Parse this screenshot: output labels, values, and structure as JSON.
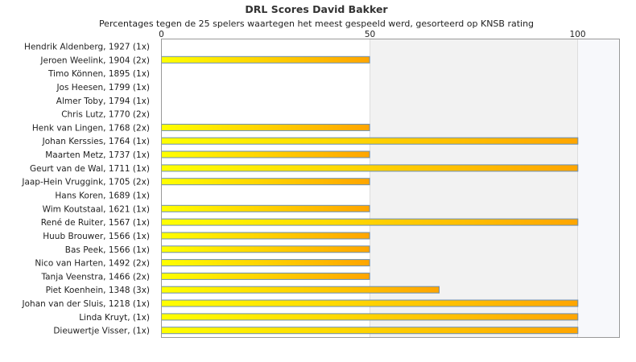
{
  "chart_data": {
    "type": "bar",
    "orientation": "horizontal",
    "title": "DRL Scores David Bakker",
    "subtitle": "Percentages tegen de 25 spelers waartegen het meest gespeeld werd, gesorteerd op KNSB rating",
    "xlim": [
      0,
      110
    ],
    "xticks": [
      0,
      50,
      100
    ],
    "grid": true,
    "bar_color_start": "#ffff00",
    "bar_color_end": "#ffa500",
    "bar_border_color": "#6a8fb5",
    "categories": [
      "Hendrik Aldenberg, 1927 (1x)",
      "Jeroen Weelink, 1904 (2x)",
      "Timo Können, 1895 (1x)",
      "Jos Heesen, 1799 (1x)",
      "Almer Toby, 1794 (1x)",
      "Chris Lutz, 1770 (2x)",
      "Henk van Lingen, 1768 (2x)",
      "Johan Kerssies, 1764 (1x)",
      "Maarten Metz, 1737 (1x)",
      "Geurt van de Wal, 1711 (1x)",
      "Jaap-Hein Vruggink, 1705 (2x)",
      "Hans Koren, 1689 (1x)",
      "Wim Koutstaal, 1621 (1x)",
      "René de Ruiter, 1567 (1x)",
      "Huub Brouwer, 1566 (1x)",
      "Bas Peek, 1566 (1x)",
      "Nico van Harten, 1492 (2x)",
      "Tanja Veenstra, 1466 (2x)",
      "Piet Koenhein, 1348 (3x)",
      "Johan van der Sluis, 1218 (1x)",
      "Linda Kruyt,  (1x)",
      "Dieuwertje Visser,  (1x)"
    ],
    "values": [
      0,
      50,
      0,
      0,
      0,
      0,
      50,
      100,
      50,
      100,
      50,
      0,
      50,
      100,
      50,
      50,
      50,
      50,
      66.7,
      100,
      100,
      100
    ]
  }
}
